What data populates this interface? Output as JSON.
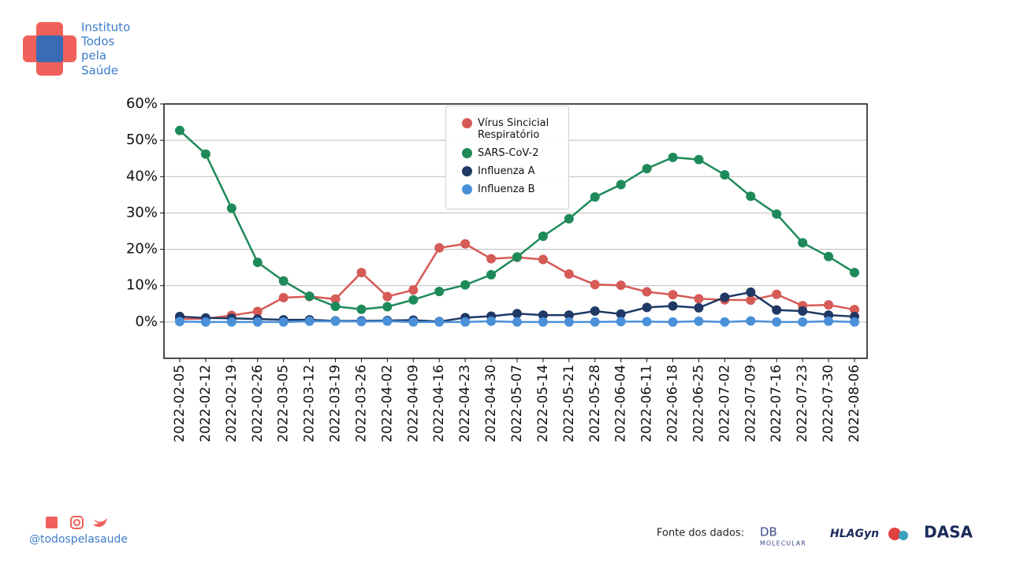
{
  "header": {
    "logo_lines": [
      "Instituto",
      "Todos",
      "pela",
      "Saúde"
    ]
  },
  "chart_data": {
    "type": "line",
    "categories": [
      "2022-02-05",
      "2022-02-12",
      "2022-02-19",
      "2022-02-26",
      "2022-03-05",
      "2022-03-12",
      "2022-03-19",
      "2022-03-26",
      "2022-04-02",
      "2022-04-09",
      "2022-04-16",
      "2022-04-23",
      "2022-04-30",
      "2022-05-07",
      "2022-05-14",
      "2022-05-21",
      "2022-05-28",
      "2022-06-04",
      "2022-06-11",
      "2022-06-18",
      "2022-06-25",
      "2022-07-02",
      "2022-07-09",
      "2022-07-16",
      "2022-07-23",
      "2022-07-30",
      "2022-08-06"
    ],
    "series": [
      {
        "name": "Vírus Sincicial Respiratório",
        "color": "#d65a55",
        "values": [
          0.8,
          0.9,
          1.8,
          2.9,
          6.7,
          7.0,
          6.3,
          13.6,
          7.0,
          8.8,
          20.4,
          21.5,
          17.4,
          17.8,
          17.2,
          13.2,
          10.3,
          10.1,
          8.3,
          7.5,
          6.4,
          6.1,
          6.0,
          7.6,
          4.5,
          4.7,
          3.4
        ]
      },
      {
        "name": "SARS-CoV-2",
        "color": "#1e8a5a",
        "values": [
          52.7,
          46.2,
          31.3,
          16.4,
          11.3,
          7.1,
          4.3,
          3.5,
          4.2,
          6.1,
          8.4,
          10.2,
          13.0,
          17.9,
          23.6,
          28.4,
          34.4,
          37.8,
          42.2,
          45.3,
          44.7,
          40.5,
          34.6,
          29.7,
          21.8,
          18.0,
          13.6
        ]
      },
      {
        "name": "Influenza A",
        "color": "#1f3864",
        "values": [
          1.5,
          1.1,
          1.0,
          0.8,
          0.6,
          0.6,
          0.3,
          0.3,
          0.4,
          0.5,
          0.1,
          1.2,
          1.6,
          2.3,
          1.9,
          1.9,
          3.0,
          2.2,
          4.0,
          4.4,
          3.9,
          6.8,
          8.2,
          3.3,
          3.0,
          1.9,
          1.5
        ]
      },
      {
        "name": "Influenza B",
        "color": "#4a90d9",
        "values": [
          0.1,
          0,
          0,
          0,
          0,
          0.2,
          0.2,
          0.1,
          0.2,
          0,
          0,
          0,
          0.2,
          0,
          0,
          0,
          0,
          0.1,
          0.1,
          0,
          0.2,
          0,
          0.3,
          0,
          0,
          0.2,
          0
        ]
      }
    ],
    "ylim": [
      -10,
      60
    ],
    "yticks": [
      {
        "value": 0,
        "label": "0%"
      },
      {
        "value": 10,
        "label": "10%"
      },
      {
        "value": 20,
        "label": "20%"
      },
      {
        "value": 30,
        "label": "30%"
      },
      {
        "value": 40,
        "label": "40%"
      },
      {
        "value": 50,
        "label": "50%"
      },
      {
        "value": 60,
        "label": "60%"
      }
    ],
    "grid": true,
    "legend": "upper center"
  },
  "footer": {
    "handle": "@todospelasaude",
    "source_label": "Fonte dos dados:",
    "sources": [
      "DB",
      "MOLECULAR",
      "HLAGyn",
      "DASA"
    ]
  }
}
